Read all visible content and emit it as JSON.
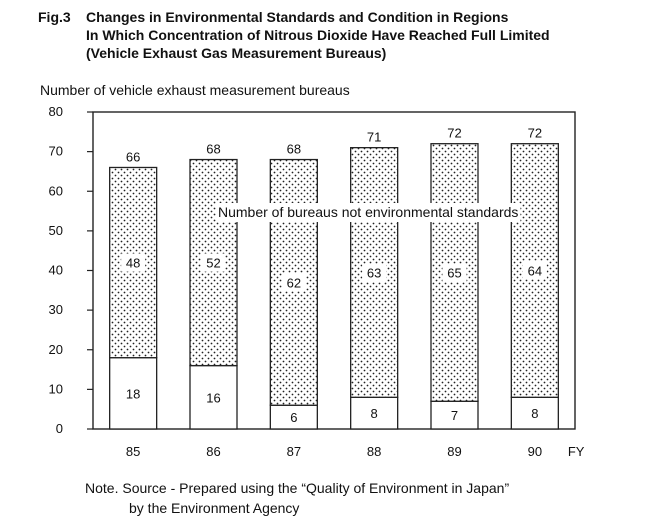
{
  "figure": {
    "number": "Fig.3",
    "title_lines": [
      "Changes in Environmental Standards and Condition in Regions",
      "In Which Concentration of Nitrous Dioxide Have Reached Full Limited",
      "(Vehicle Exhaust Gas Measurement Bureaus)"
    ]
  },
  "chart_data": {
    "type": "bar",
    "stacked": true,
    "ylabel": "Number of vehicle exhaust measurement bureaus",
    "xlabel": "FY",
    "categories": [
      "85",
      "86",
      "87",
      "88",
      "89",
      "90"
    ],
    "totals": [
      66,
      68,
      68,
      71,
      72,
      72
    ],
    "series": [
      {
        "values": [
          18,
          16,
          6,
          8,
          7,
          8
        ],
        "fill": "white"
      },
      {
        "name": "Number of bureaus not environmental standards",
        "values": [
          48,
          52,
          62,
          63,
          65,
          64
        ],
        "fill": "dotted"
      }
    ],
    "ylim": [
      0,
      80
    ],
    "yticks": [
      0,
      10,
      20,
      30,
      40,
      50,
      60,
      70,
      80
    ],
    "grid": false,
    "legend": "inline label in plot area"
  },
  "note": {
    "line1": "Note. Source - Prepared using the “Quality of Environment in Japan”",
    "line2": "by the Environment Agency"
  }
}
